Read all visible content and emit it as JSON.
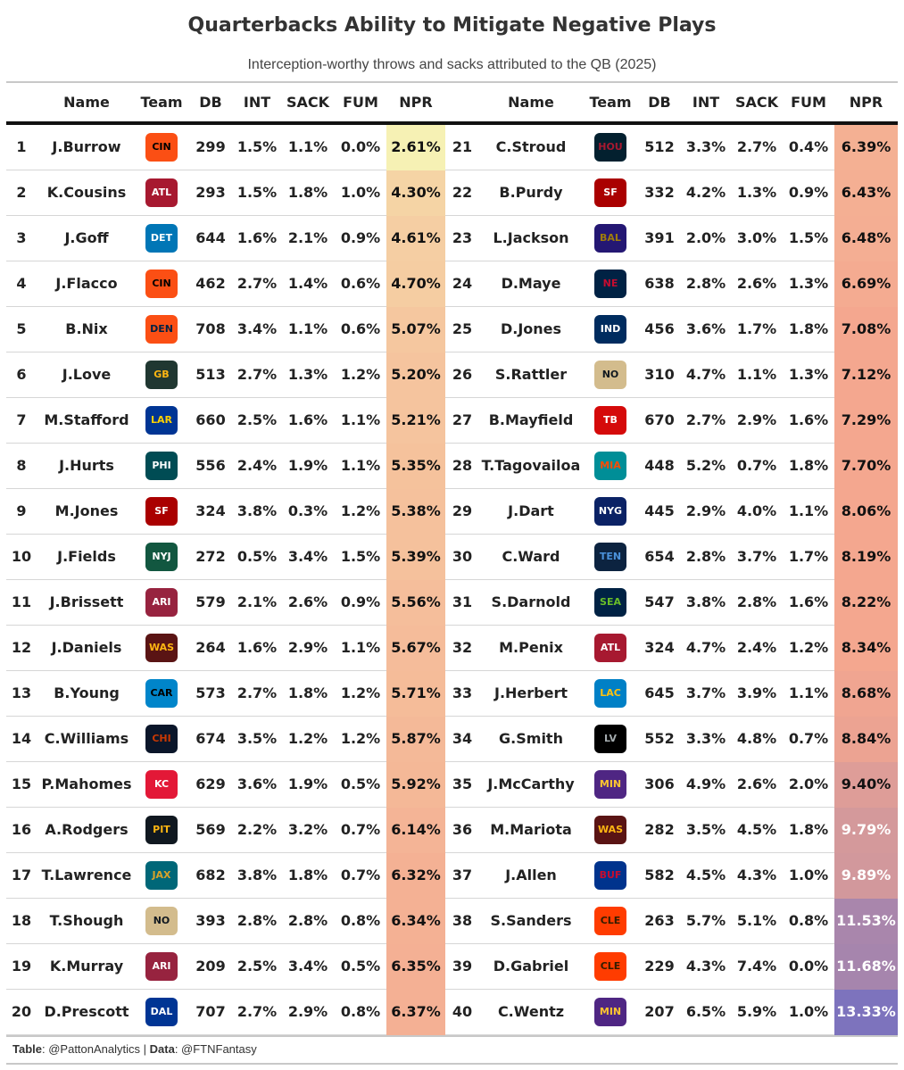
{
  "title": "Quarterbacks Ability to Mitigate Negative Plays",
  "subtitle": "Interception-worthy throws and sacks attributed to the QB (2025)",
  "columns": [
    "",
    "Name",
    "Team",
    "DB",
    "INT",
    "SACK",
    "FUM",
    "NPR"
  ],
  "footer": {
    "table_label": "Table",
    "table_value": ": @PattonAnalytics | ",
    "data_label": "Data",
    "data_value": ": @FTNFantasy"
  },
  "teams": {
    "CIN": {
      "bg": "#fb4f14",
      "fg": "#000000"
    },
    "ATL": {
      "bg": "#a71930",
      "fg": "#ffffff"
    },
    "DET": {
      "bg": "#0076b6",
      "fg": "#ffffff"
    },
    "DEN": {
      "bg": "#fb4f14",
      "fg": "#002244"
    },
    "GB": {
      "bg": "#203731",
      "fg": "#ffb612"
    },
    "LAR": {
      "bg": "#003594",
      "fg": "#ffd100"
    },
    "PHI": {
      "bg": "#004c54",
      "fg": "#ffffff"
    },
    "SF": {
      "bg": "#aa0000",
      "fg": "#ffffff"
    },
    "NYJ": {
      "bg": "#125740",
      "fg": "#ffffff"
    },
    "ARI": {
      "bg": "#97233f",
      "fg": "#ffffff"
    },
    "WAS": {
      "bg": "#5a1414",
      "fg": "#ffb612"
    },
    "CAR": {
      "bg": "#0085ca",
      "fg": "#000000"
    },
    "CHI": {
      "bg": "#0b162a",
      "fg": "#c83803"
    },
    "KC": {
      "bg": "#e31837",
      "fg": "#ffffff"
    },
    "PIT": {
      "bg": "#101820",
      "fg": "#ffb612"
    },
    "JAX": {
      "bg": "#006778",
      "fg": "#d7a22a"
    },
    "NO": {
      "bg": "#d3bc8d",
      "fg": "#101820"
    },
    "DAL": {
      "bg": "#003594",
      "fg": "#ffffff"
    },
    "HOU": {
      "bg": "#03202f",
      "fg": "#a71930"
    },
    "BAL": {
      "bg": "#241773",
      "fg": "#9e7c0c"
    },
    "NE": {
      "bg": "#002244",
      "fg": "#c60c30"
    },
    "IND": {
      "bg": "#002c5f",
      "fg": "#ffffff"
    },
    "TB": {
      "bg": "#d50a0a",
      "fg": "#ffffff"
    },
    "MIA": {
      "bg": "#008e97",
      "fg": "#fc4c02"
    },
    "NYG": {
      "bg": "#0b2265",
      "fg": "#ffffff"
    },
    "TEN": {
      "bg": "#0c2340",
      "fg": "#4b92db"
    },
    "SEA": {
      "bg": "#002244",
      "fg": "#69be28"
    },
    "LAC": {
      "bg": "#0080c6",
      "fg": "#ffc20e"
    },
    "LV": {
      "bg": "#000000",
      "fg": "#a5acaf"
    },
    "MIN": {
      "bg": "#4f2683",
      "fg": "#ffc62f"
    },
    "BUF": {
      "bg": "#00338d",
      "fg": "#c60c30"
    },
    "CLE": {
      "bg": "#ff3c00",
      "fg": "#311d00"
    }
  },
  "chart_data": {
    "type": "table",
    "title": "Quarterbacks Ability to Mitigate Negative Plays",
    "subtitle": "Interception-worthy throws and sacks attributed to the QB (2025)",
    "columns": [
      "",
      "Name",
      "Team",
      "DB",
      "INT",
      "SACK",
      "FUM",
      "NPR"
    ],
    "npr_color_scale": {
      "low": "#f6f1b4",
      "mid": "#f4a78f",
      "high": "#7d73bd"
    },
    "rows": [
      {
        "rank": "1",
        "name": "J.Burrow",
        "team": "CIN",
        "db": "299",
        "int": "1.5%",
        "sack": "1.1%",
        "fum": "0.0%",
        "npr": "2.61%",
        "npr_value": 2.61
      },
      {
        "rank": "2",
        "name": "K.Cousins",
        "team": "ATL",
        "db": "293",
        "int": "1.5%",
        "sack": "1.8%",
        "fum": "1.0%",
        "npr": "4.30%",
        "npr_value": 4.3
      },
      {
        "rank": "3",
        "name": "J.Goff",
        "team": "DET",
        "db": "644",
        "int": "1.6%",
        "sack": "2.1%",
        "fum": "0.9%",
        "npr": "4.61%",
        "npr_value": 4.61
      },
      {
        "rank": "4",
        "name": "J.Flacco",
        "team": "CIN",
        "db": "462",
        "int": "2.7%",
        "sack": "1.4%",
        "fum": "0.6%",
        "npr": "4.70%",
        "npr_value": 4.7
      },
      {
        "rank": "5",
        "name": "B.Nix",
        "team": "DEN",
        "db": "708",
        "int": "3.4%",
        "sack": "1.1%",
        "fum": "0.6%",
        "npr": "5.07%",
        "npr_value": 5.07
      },
      {
        "rank": "6",
        "name": "J.Love",
        "team": "GB",
        "db": "513",
        "int": "2.7%",
        "sack": "1.3%",
        "fum": "1.2%",
        "npr": "5.20%",
        "npr_value": 5.2
      },
      {
        "rank": "7",
        "name": "M.Stafford",
        "team": "LAR",
        "db": "660",
        "int": "2.5%",
        "sack": "1.6%",
        "fum": "1.1%",
        "npr": "5.21%",
        "npr_value": 5.21
      },
      {
        "rank": "8",
        "name": "J.Hurts",
        "team": "PHI",
        "db": "556",
        "int": "2.4%",
        "sack": "1.9%",
        "fum": "1.1%",
        "npr": "5.35%",
        "npr_value": 5.35
      },
      {
        "rank": "9",
        "name": "M.Jones",
        "team": "SF",
        "db": "324",
        "int": "3.8%",
        "sack": "0.3%",
        "fum": "1.2%",
        "npr": "5.38%",
        "npr_value": 5.38
      },
      {
        "rank": "10",
        "name": "J.Fields",
        "team": "NYJ",
        "db": "272",
        "int": "0.5%",
        "sack": "3.4%",
        "fum": "1.5%",
        "npr": "5.39%",
        "npr_value": 5.39
      },
      {
        "rank": "11",
        "name": "J.Brissett",
        "team": "ARI",
        "db": "579",
        "int": "2.1%",
        "sack": "2.6%",
        "fum": "0.9%",
        "npr": "5.56%",
        "npr_value": 5.56
      },
      {
        "rank": "12",
        "name": "J.Daniels",
        "team": "WAS",
        "db": "264",
        "int": "1.6%",
        "sack": "2.9%",
        "fum": "1.1%",
        "npr": "5.67%",
        "npr_value": 5.67
      },
      {
        "rank": "13",
        "name": "B.Young",
        "team": "CAR",
        "db": "573",
        "int": "2.7%",
        "sack": "1.8%",
        "fum": "1.2%",
        "npr": "5.71%",
        "npr_value": 5.71
      },
      {
        "rank": "14",
        "name": "C.Williams",
        "team": "CHI",
        "db": "674",
        "int": "3.5%",
        "sack": "1.2%",
        "fum": "1.2%",
        "npr": "5.87%",
        "npr_value": 5.87
      },
      {
        "rank": "15",
        "name": "P.Mahomes",
        "team": "KC",
        "db": "629",
        "int": "3.6%",
        "sack": "1.9%",
        "fum": "0.5%",
        "npr": "5.92%",
        "npr_value": 5.92
      },
      {
        "rank": "16",
        "name": "A.Rodgers",
        "team": "PIT",
        "db": "569",
        "int": "2.2%",
        "sack": "3.2%",
        "fum": "0.7%",
        "npr": "6.14%",
        "npr_value": 6.14
      },
      {
        "rank": "17",
        "name": "T.Lawrence",
        "team": "JAX",
        "db": "682",
        "int": "3.8%",
        "sack": "1.8%",
        "fum": "0.7%",
        "npr": "6.32%",
        "npr_value": 6.32
      },
      {
        "rank": "18",
        "name": "T.Shough",
        "team": "NO",
        "db": "393",
        "int": "2.8%",
        "sack": "2.8%",
        "fum": "0.8%",
        "npr": "6.34%",
        "npr_value": 6.34
      },
      {
        "rank": "19",
        "name": "K.Murray",
        "team": "ARI",
        "db": "209",
        "int": "2.5%",
        "sack": "3.4%",
        "fum": "0.5%",
        "npr": "6.35%",
        "npr_value": 6.35
      },
      {
        "rank": "20",
        "name": "D.Prescott",
        "team": "DAL",
        "db": "707",
        "int": "2.7%",
        "sack": "2.9%",
        "fum": "0.8%",
        "npr": "6.37%",
        "npr_value": 6.37
      },
      {
        "rank": "21",
        "name": "C.Stroud",
        "team": "HOU",
        "db": "512",
        "int": "3.3%",
        "sack": "2.7%",
        "fum": "0.4%",
        "npr": "6.39%",
        "npr_value": 6.39
      },
      {
        "rank": "22",
        "name": "B.Purdy",
        "team": "SF",
        "db": "332",
        "int": "4.2%",
        "sack": "1.3%",
        "fum": "0.9%",
        "npr": "6.43%",
        "npr_value": 6.43
      },
      {
        "rank": "23",
        "name": "L.Jackson",
        "team": "BAL",
        "db": "391",
        "int": "2.0%",
        "sack": "3.0%",
        "fum": "1.5%",
        "npr": "6.48%",
        "npr_value": 6.48
      },
      {
        "rank": "24",
        "name": "D.Maye",
        "team": "NE",
        "db": "638",
        "int": "2.8%",
        "sack": "2.6%",
        "fum": "1.3%",
        "npr": "6.69%",
        "npr_value": 6.69
      },
      {
        "rank": "25",
        "name": "D.Jones",
        "team": "IND",
        "db": "456",
        "int": "3.6%",
        "sack": "1.7%",
        "fum": "1.8%",
        "npr": "7.08%",
        "npr_value": 7.08
      },
      {
        "rank": "26",
        "name": "S.Rattler",
        "team": "NO",
        "db": "310",
        "int": "4.7%",
        "sack": "1.1%",
        "fum": "1.3%",
        "npr": "7.12%",
        "npr_value": 7.12
      },
      {
        "rank": "27",
        "name": "B.Mayfield",
        "team": "TB",
        "db": "670",
        "int": "2.7%",
        "sack": "2.9%",
        "fum": "1.6%",
        "npr": "7.29%",
        "npr_value": 7.29
      },
      {
        "rank": "28",
        "name": "T.Tagovailoa",
        "team": "MIA",
        "db": "448",
        "int": "5.2%",
        "sack": "0.7%",
        "fum": "1.8%",
        "npr": "7.70%",
        "npr_value": 7.7
      },
      {
        "rank": "29",
        "name": "J.Dart",
        "team": "NYG",
        "db": "445",
        "int": "2.9%",
        "sack": "4.0%",
        "fum": "1.1%",
        "npr": "8.06%",
        "npr_value": 8.06
      },
      {
        "rank": "30",
        "name": "C.Ward",
        "team": "TEN",
        "db": "654",
        "int": "2.8%",
        "sack": "3.7%",
        "fum": "1.7%",
        "npr": "8.19%",
        "npr_value": 8.19
      },
      {
        "rank": "31",
        "name": "S.Darnold",
        "team": "SEA",
        "db": "547",
        "int": "3.8%",
        "sack": "2.8%",
        "fum": "1.6%",
        "npr": "8.22%",
        "npr_value": 8.22
      },
      {
        "rank": "32",
        "name": "M.Penix",
        "team": "ATL",
        "db": "324",
        "int": "4.7%",
        "sack": "2.4%",
        "fum": "1.2%",
        "npr": "8.34%",
        "npr_value": 8.34
      },
      {
        "rank": "33",
        "name": "J.Herbert",
        "team": "LAC",
        "db": "645",
        "int": "3.7%",
        "sack": "3.9%",
        "fum": "1.1%",
        "npr": "8.68%",
        "npr_value": 8.68
      },
      {
        "rank": "34",
        "name": "G.Smith",
        "team": "LV",
        "db": "552",
        "int": "3.3%",
        "sack": "4.8%",
        "fum": "0.7%",
        "npr": "8.84%",
        "npr_value": 8.84
      },
      {
        "rank": "35",
        "name": "J.McCarthy",
        "team": "MIN",
        "db": "306",
        "int": "4.9%",
        "sack": "2.6%",
        "fum": "2.0%",
        "npr": "9.40%",
        "npr_value": 9.4
      },
      {
        "rank": "36",
        "name": "M.Mariota",
        "team": "WAS",
        "db": "282",
        "int": "3.5%",
        "sack": "4.5%",
        "fum": "1.8%",
        "npr": "9.79%",
        "npr_value": 9.79
      },
      {
        "rank": "37",
        "name": "J.Allen",
        "team": "BUF",
        "db": "582",
        "int": "4.5%",
        "sack": "4.3%",
        "fum": "1.0%",
        "npr": "9.89%",
        "npr_value": 9.89
      },
      {
        "rank": "38",
        "name": "S.Sanders",
        "team": "CLE",
        "db": "263",
        "int": "5.7%",
        "sack": "5.1%",
        "fum": "0.8%",
        "npr": "11.53%",
        "npr_value": 11.53
      },
      {
        "rank": "39",
        "name": "D.Gabriel",
        "team": "CLE",
        "db": "229",
        "int": "4.3%",
        "sack": "7.4%",
        "fum": "0.0%",
        "npr": "11.68%",
        "npr_value": 11.68
      },
      {
        "rank": "40",
        "name": "C.Wentz",
        "team": "MIN",
        "db": "207",
        "int": "6.5%",
        "sack": "5.9%",
        "fum": "1.0%",
        "npr": "13.33%",
        "npr_value": 13.33
      }
    ]
  }
}
